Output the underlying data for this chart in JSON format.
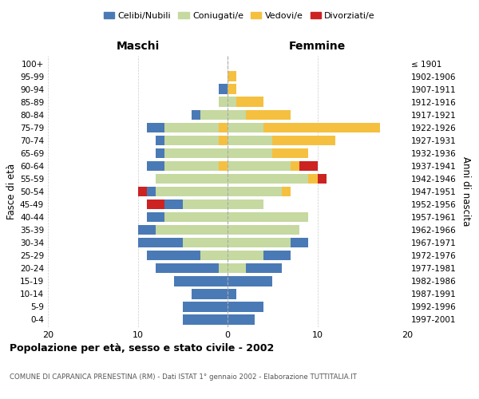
{
  "age_groups": [
    "0-4",
    "5-9",
    "10-14",
    "15-19",
    "20-24",
    "25-29",
    "30-34",
    "35-39",
    "40-44",
    "45-49",
    "50-54",
    "55-59",
    "60-64",
    "65-69",
    "70-74",
    "75-79",
    "80-84",
    "85-89",
    "90-94",
    "95-99",
    "100+"
  ],
  "birth_years": [
    "1997-2001",
    "1992-1996",
    "1987-1991",
    "1982-1986",
    "1977-1981",
    "1972-1976",
    "1967-1971",
    "1962-1966",
    "1957-1961",
    "1952-1956",
    "1947-1951",
    "1942-1946",
    "1937-1941",
    "1932-1936",
    "1927-1931",
    "1922-1926",
    "1917-1921",
    "1912-1916",
    "1907-1911",
    "1902-1906",
    "≤ 1901"
  ],
  "male_celibe": [
    5,
    5,
    4,
    6,
    7,
    6,
    5,
    2,
    2,
    2,
    1,
    0,
    2,
    1,
    1,
    2,
    1,
    0,
    1,
    0,
    0
  ],
  "male_coniugato": [
    0,
    0,
    0,
    0,
    1,
    3,
    5,
    8,
    7,
    5,
    8,
    8,
    7,
    7,
    7,
    7,
    3,
    1,
    0,
    0,
    0
  ],
  "male_vedovo": [
    0,
    0,
    0,
    0,
    0,
    0,
    0,
    0,
    0,
    0,
    0,
    0,
    1,
    0,
    1,
    1,
    0,
    0,
    0,
    0,
    0
  ],
  "male_divorziato": [
    0,
    0,
    0,
    0,
    0,
    0,
    0,
    0,
    0,
    2,
    1,
    0,
    0,
    0,
    0,
    0,
    0,
    0,
    0,
    0,
    0
  ],
  "female_nubile": [
    3,
    4,
    1,
    5,
    4,
    3,
    2,
    0,
    0,
    0,
    0,
    0,
    0,
    1,
    1,
    1,
    1,
    0,
    1,
    0,
    0
  ],
  "female_coniugata": [
    0,
    0,
    0,
    0,
    2,
    4,
    7,
    8,
    9,
    4,
    6,
    9,
    7,
    5,
    5,
    4,
    2,
    1,
    0,
    0,
    0
  ],
  "female_vedova": [
    0,
    0,
    0,
    0,
    0,
    0,
    0,
    0,
    0,
    0,
    1,
    1,
    1,
    4,
    7,
    13,
    5,
    3,
    1,
    1,
    0
  ],
  "female_divorziata": [
    0,
    0,
    0,
    0,
    0,
    0,
    0,
    0,
    0,
    0,
    0,
    1,
    2,
    0,
    0,
    0,
    0,
    0,
    0,
    0,
    0
  ],
  "color_celibe": "#4a7ab5",
  "color_coniugato": "#c5d9a0",
  "color_vedovo": "#f5c040",
  "color_divorziato": "#cc2222",
  "xlim": 20,
  "title": "Popolazione per età, sesso e stato civile - 2002",
  "subtitle": "COMUNE DI CAPRANICA PRENESTINA (RM) - Dati ISTAT 1° gennaio 2002 - Elaborazione TUTTITALIA.IT",
  "ylabel_left": "Fasce di età",
  "ylabel_right": "Anni di nascita",
  "header_maschi": "Maschi",
  "header_femmine": "Femmine",
  "legend_labels": [
    "Celibi/Nubili",
    "Coniugati/e",
    "Vedovi/e",
    "Divorziati/e"
  ],
  "background_color": "#ffffff",
  "grid_color": "#cccccc"
}
